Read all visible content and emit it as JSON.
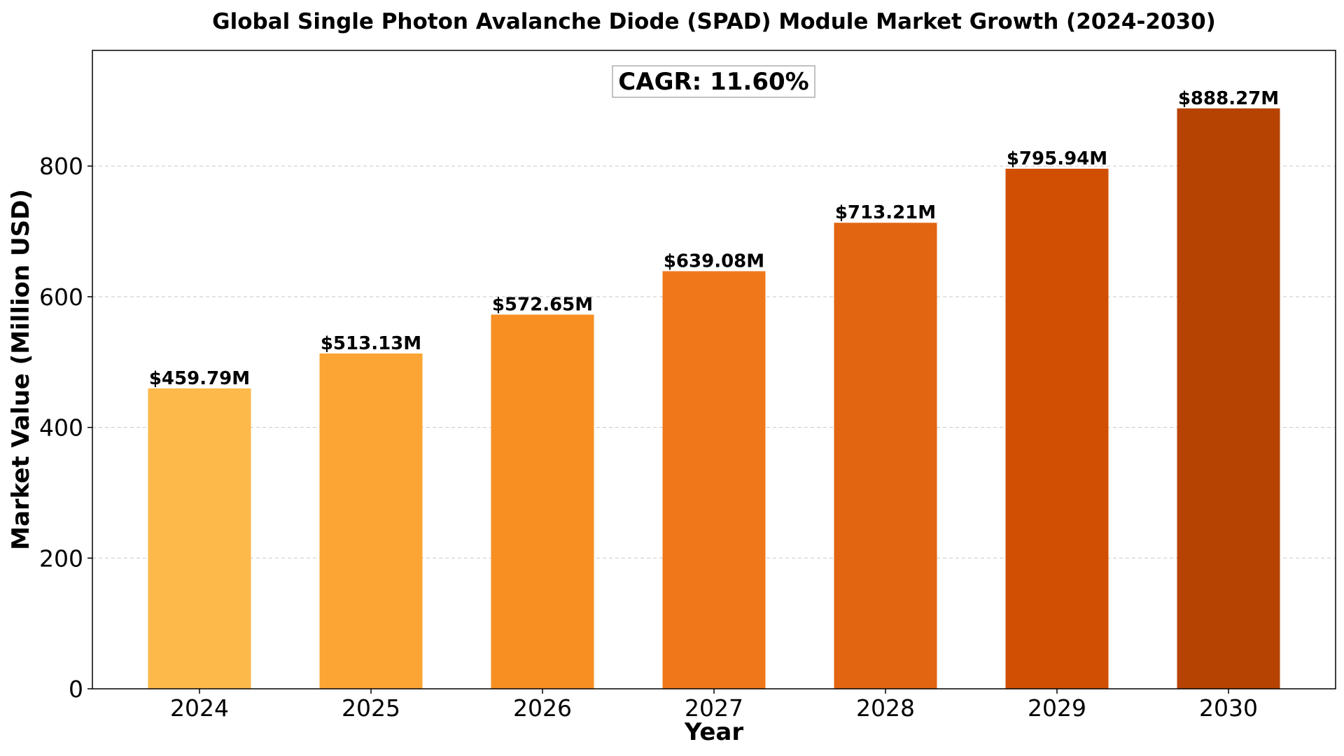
{
  "chart_data": {
    "type": "bar",
    "title": "Global Single Photon Avalanche Diode (SPAD) Module Market Growth (2024-2030)",
    "xlabel": "Year",
    "ylabel": "Market Value (Million USD)",
    "categories": [
      "2024",
      "2025",
      "2026",
      "2027",
      "2028",
      "2029",
      "2030"
    ],
    "values": [
      459.79,
      513.13,
      572.65,
      639.08,
      713.21,
      795.94,
      888.27
    ],
    "value_labels": [
      "$459.79M",
      "$513.13M",
      "$572.65M",
      "$639.08M",
      "$713.21M",
      "$795.94M",
      "$888.27M"
    ],
    "bar_colors": [
      "#fdb94a",
      "#fca434",
      "#f78f22",
      "#ef781b",
      "#e26511",
      "#d04f03",
      "#b74303"
    ],
    "ylim": [
      0,
      977
    ],
    "yticks": [
      0,
      200,
      400,
      600,
      800
    ],
    "ytick_labels": [
      "0",
      "200",
      "400",
      "600",
      "800"
    ],
    "grid": "horizontal dashed",
    "annotation": "CAGR: 11.60%"
  }
}
